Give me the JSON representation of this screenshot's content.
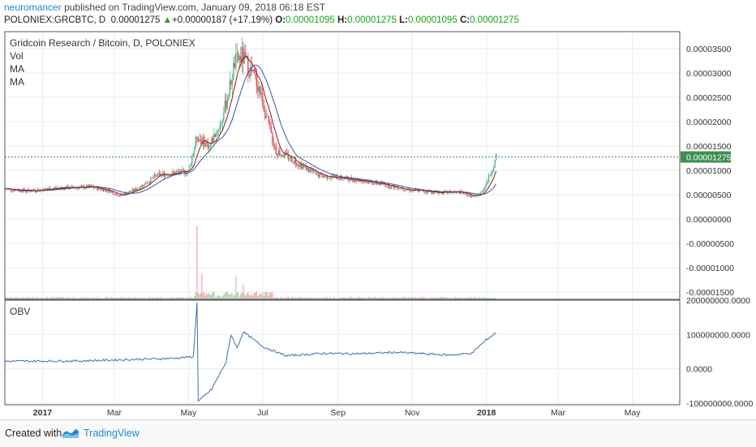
{
  "header": {
    "author": "neuromancer",
    "published_text": "published on TradingView.com, January 09, 2018 06:18 EST",
    "symbol": "POLONIEX:GRCBTC, D",
    "last": "0.00001275",
    "up_arrow": "▲",
    "change": "+0.00000187 (+17.19%)",
    "o_label": "O:",
    "o_value": "0.00001095",
    "h_label": "H:",
    "h_value": "0.00001275",
    "l_label": "L:",
    "l_value": "0.00001095",
    "c_label": "C:",
    "c_value": "0.00001275"
  },
  "legend": {
    "title": "Gridcoin Research / Bitcoin, D, POLONIEX",
    "vol": "Vol",
    "ma1": "MA",
    "ma2": "MA",
    "obv": "OBV"
  },
  "footer": {
    "created_with": "Created with",
    "brand": "TradingView"
  },
  "colors": {
    "up": "#53b987",
    "down": "#eb4d5c",
    "ma_fast": "#8b1a1a",
    "ma_slow": "#3a56a4",
    "obv": "#3e6faa",
    "grid": "#e8ecf0",
    "last_price_label": "#3f8f4f",
    "brand": "#1e8ad6"
  },
  "chart_data": [
    {
      "type": "candlestick",
      "title": "Gridcoin Research / Bitcoin, D, POLONIEX",
      "last_price_label": "0.00001275",
      "price_ticks": [
        "0.00003500",
        "0.00003000",
        "0.00002500",
        "0.00002000",
        "0.00001500",
        "0.00001000",
        "0.00000500",
        "0.00000000",
        "-0.00000500",
        "-0.00001000",
        "-0.00001500"
      ],
      "x_ticks": [
        "2017",
        "Mar",
        "May",
        "Jul",
        "Sep",
        "Nov",
        "2018",
        "Mar",
        "May"
      ],
      "ylim": [
        -1.65e-05,
        3.85e-05
      ],
      "date_range": [
        "2016-12-01",
        "2018-06-09"
      ],
      "price_anchors": [
        [
          "2016-12-01",
          6.2e-06
        ],
        [
          "2016-12-20",
          5.8e-06
        ],
        [
          "2017-01-15",
          6.4e-06
        ],
        [
          "2017-02-10",
          6.6e-06
        ],
        [
          "2017-02-25",
          5.8e-06
        ],
        [
          "2017-03-05",
          4.8e-06
        ],
        [
          "2017-03-20",
          6.2e-06
        ],
        [
          "2017-04-05",
          9e-06
        ],
        [
          "2017-04-20",
          9.5e-06
        ],
        [
          "2017-05-01",
          9.8e-06
        ],
        [
          "2017-05-08",
          1.7e-05
        ],
        [
          "2017-05-18",
          1.5e-05
        ],
        [
          "2017-05-28",
          2e-05
        ],
        [
          "2017-06-03",
          2.6e-05
        ],
        [
          "2017-06-08",
          3.2e-05
        ],
        [
          "2017-06-14",
          3.35e-05
        ],
        [
          "2017-06-20",
          3.1e-05
        ],
        [
          "2017-06-28",
          2.7e-05
        ],
        [
          "2017-07-05",
          2e-05
        ],
        [
          "2017-07-12",
          1.4e-05
        ],
        [
          "2017-07-20",
          1.3e-05
        ],
        [
          "2017-07-30",
          1.15e-05
        ],
        [
          "2017-08-15",
          9e-06
        ],
        [
          "2017-09-01",
          8.5e-06
        ],
        [
          "2017-09-20",
          8e-06
        ],
        [
          "2017-10-10",
          7e-06
        ],
        [
          "2017-10-30",
          6e-06
        ],
        [
          "2017-11-20",
          5.5e-06
        ],
        [
          "2017-12-10",
          5.5e-06
        ],
        [
          "2017-12-22",
          4.5e-06
        ],
        [
          "2017-12-28",
          5.5e-06
        ],
        [
          "2018-01-03",
          8.5e-06
        ],
        [
          "2018-01-07",
          1.1e-05
        ],
        [
          "2018-01-09",
          1.27e-05
        ]
      ],
      "volume_spikes": [
        [
          "2017-05-08",
          1.0
        ],
        [
          "2017-06-09",
          0.32
        ],
        [
          "2017-05-12",
          0.35
        ],
        [
          "2017-06-15",
          0.2
        ]
      ],
      "series": [
        {
          "name": "MA",
          "role": "fast"
        },
        {
          "name": "MA",
          "role": "slow"
        }
      ]
    },
    {
      "type": "line",
      "title": "OBV",
      "y_ticks": [
        "200000000.0000",
        "100000000.0000",
        "0.0000",
        "-100000000.0000"
      ],
      "ylim": [
        -105000000,
        200000000
      ],
      "anchors": [
        [
          "2016-12-01",
          22000000
        ],
        [
          "2017-02-01",
          23000000
        ],
        [
          "2017-04-15",
          30000000
        ],
        [
          "2017-05-05",
          35000000
        ],
        [
          "2017-05-08",
          195000000
        ],
        [
          "2017-05-09",
          -95000000
        ],
        [
          "2017-05-20",
          -60000000
        ],
        [
          "2017-06-01",
          20000000
        ],
        [
          "2017-06-05",
          100000000
        ],
        [
          "2017-06-10",
          60000000
        ],
        [
          "2017-06-15",
          108000000
        ],
        [
          "2017-07-01",
          65000000
        ],
        [
          "2017-07-20",
          38000000
        ],
        [
          "2017-08-20",
          45000000
        ],
        [
          "2017-09-20",
          44000000
        ],
        [
          "2017-10-20",
          48000000
        ],
        [
          "2017-12-01",
          40000000
        ],
        [
          "2017-12-20",
          45000000
        ],
        [
          "2018-01-01",
          85000000
        ],
        [
          "2018-01-09",
          105000000
        ]
      ]
    }
  ]
}
